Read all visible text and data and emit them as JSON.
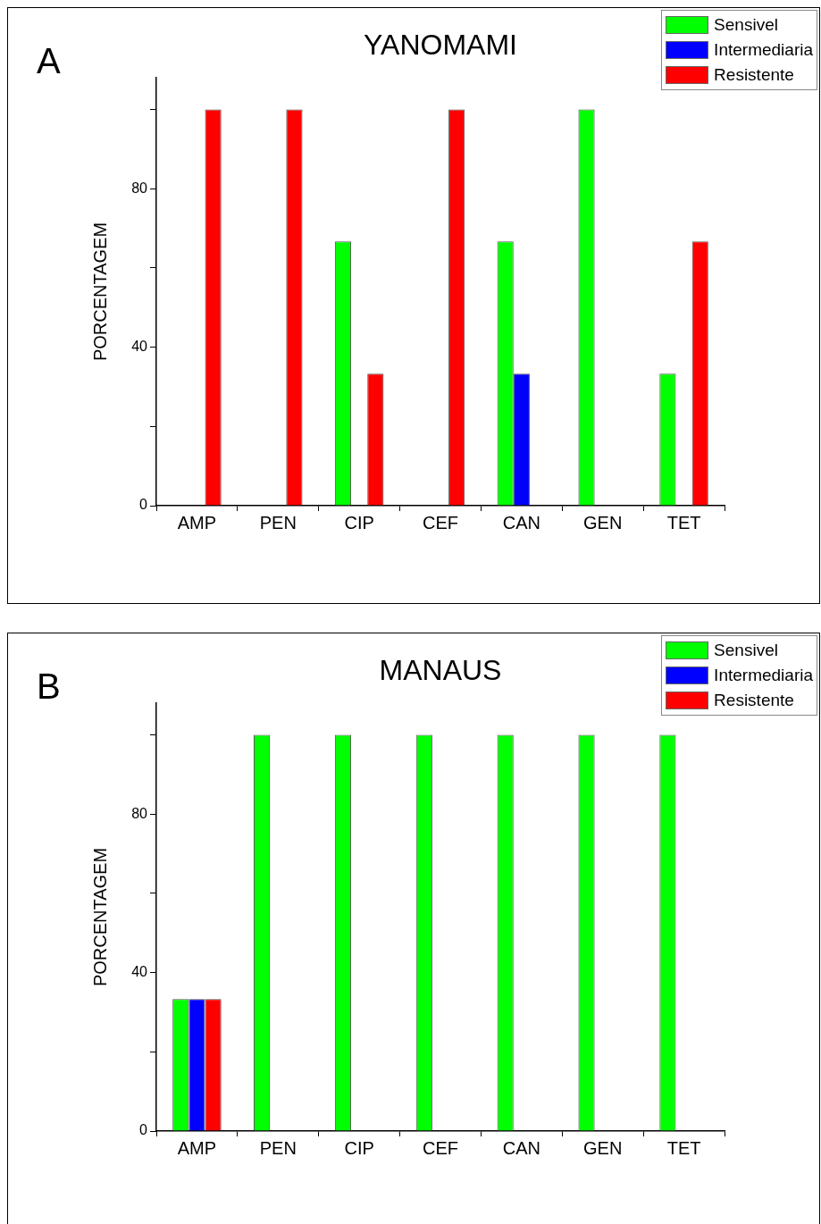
{
  "chart_data": [
    {
      "type": "bar",
      "title": "YANOMAMI",
      "ylabel": "PORCENTAGEM",
      "annotations": [
        "A"
      ],
      "categories": [
        "AMP",
        "PEN",
        "CIP",
        "CEF",
        "CAN",
        "GEN",
        "TET"
      ],
      "series": [
        {
          "name": "Sensivel",
          "color": "#00ff00",
          "values": [
            0,
            0,
            66.7,
            0,
            66.7,
            100,
            33.3
          ]
        },
        {
          "name": "Intermediaria",
          "color": "#0000ff",
          "values": [
            0,
            0,
            0,
            0,
            33.3,
            0,
            0
          ]
        },
        {
          "name": "Resistente",
          "color": "#ff0000",
          "values": [
            100,
            100,
            33.3,
            100,
            0,
            0,
            66.7
          ]
        }
      ],
      "ylim": [
        0,
        108
      ],
      "yticks": [
        0,
        {
          "value": 20,
          "label": null
        },
        40,
        {
          "value": 60,
          "label": null
        },
        80,
        {
          "value": 100,
          "label": null
        }
      ],
      "grid": false,
      "legend": "top right"
    },
    {
      "type": "bar",
      "title": "MANAUS",
      "ylabel": "PORCENTAGEM",
      "annotations": [
        "B"
      ],
      "categories": [
        "AMP",
        "PEN",
        "CIP",
        "CEF",
        "CAN",
        "GEN",
        "TET"
      ],
      "series": [
        {
          "name": "Sensivel",
          "color": "#00ff00",
          "values": [
            33.3,
            100,
            100,
            100,
            100,
            100,
            100
          ]
        },
        {
          "name": "Intermediaria",
          "color": "#0000ff",
          "values": [
            33.3,
            0,
            0,
            0,
            0,
            0,
            0
          ]
        },
        {
          "name": "Resistente",
          "color": "#ff0000",
          "values": [
            33.3,
            0,
            0,
            0,
            0,
            0,
            0
          ]
        }
      ],
      "ylim": [
        0,
        108
      ],
      "yticks": [
        0,
        {
          "value": 20,
          "label": null
        },
        40,
        {
          "value": 60,
          "label": null
        },
        80,
        {
          "value": 100,
          "label": null
        }
      ],
      "grid": false,
      "legend": "top right"
    }
  ]
}
